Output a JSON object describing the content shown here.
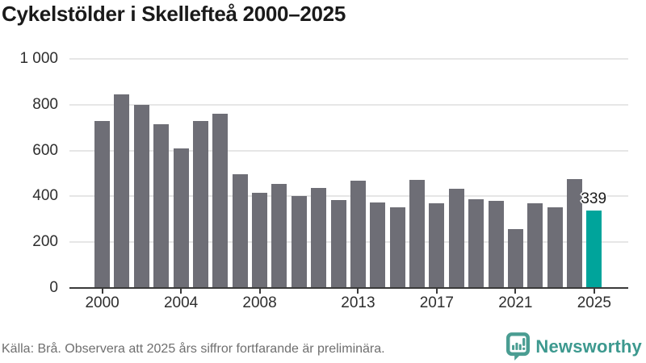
{
  "title": "Cykelstölder i Skellefteå 2000–2025",
  "footer": {
    "source": "Källa: Brå. Observera att 2025 års siffror fortfarande är preliminära.",
    "brand": "Newsworthy"
  },
  "colors": {
    "bar": "#6e6e76",
    "highlight": "#00a49b",
    "brand": "#3d998f",
    "axis": "#3a3a3a",
    "grid": "#e6e6e6",
    "tick_text": "#2e2e2e",
    "muted_text": "#6f6f6f",
    "title_text": "#1a1a1a"
  },
  "icons": {
    "logo": "newsworthy-speech-bubble-bar-chart-icon"
  },
  "chart_data": {
    "type": "bar",
    "title": "Cykelstölder i Skellefteå 2000–2025",
    "xlabel": "",
    "ylabel": "",
    "categories": [
      "2000",
      "2001",
      "2002",
      "2003",
      "2004",
      "2005",
      "2006",
      "2007",
      "2008",
      "2009",
      "2010",
      "2011",
      "2012",
      "2013",
      "2014",
      "2015",
      "2016",
      "2017",
      "2018",
      "2019",
      "2020",
      "2021",
      "2022",
      "2023",
      "2024",
      "2025"
    ],
    "values": [
      730,
      845,
      800,
      715,
      610,
      730,
      760,
      495,
      415,
      455,
      400,
      436,
      385,
      470,
      373,
      351,
      472,
      371,
      433,
      387,
      380,
      257,
      370,
      352,
      477,
      339
    ],
    "highlight_index": 25,
    "highlight": {
      "category": "2025",
      "value": 339,
      "label": "339"
    },
    "ylim": [
      0,
      1000
    ],
    "y_ticks": [
      0,
      200,
      400,
      600,
      800,
      1000
    ],
    "y_tick_labels": [
      "0",
      "200",
      "400",
      "600",
      "800",
      "1 000"
    ],
    "x_tick_indices": [
      0,
      4,
      8,
      13,
      17,
      21,
      25
    ],
    "x_tick_labels": [
      "2000",
      "2004",
      "2008",
      "2013",
      "2017",
      "2021",
      "2025"
    ],
    "grid": true,
    "legend": false
  }
}
